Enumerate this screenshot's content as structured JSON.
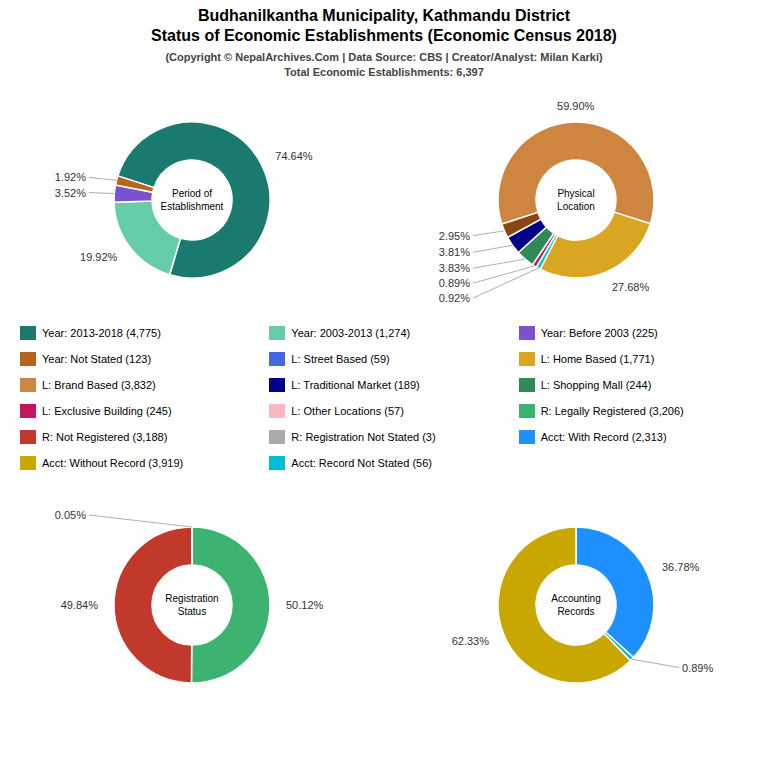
{
  "title": "Budhanilkantha Municipality, Kathmandu District\nStatus of Economic Establishments (Economic Census 2018)",
  "subtitle": "(Copyright © NepalArchives.Com | Data Source: CBS | Creator/Analyst: Milan Karki)\nTotal Economic Establishments: 6,397",
  "legend_entries": [
    [
      {
        "name": "Year: 2013-2018 (4,775)",
        "color": "#1a7a6e"
      },
      {
        "name": "Year: Not Stated (123)",
        "color": "#b5651d"
      },
      {
        "name": "L: Brand Based (3,832)",
        "color": "#cd853f"
      },
      {
        "name": "L: Exclusive Building (245)",
        "color": "#c2185b"
      },
      {
        "name": "R: Not Registered (3,188)",
        "color": "#c0392b"
      },
      {
        "name": "Acct: Without Record (3,919)",
        "color": "#c8a800"
      }
    ],
    [
      {
        "name": "Year: 2003-2013 (1,274)",
        "color": "#66cdaa"
      },
      {
        "name": "L: Street Based (59)",
        "color": "#4169E1"
      },
      {
        "name": "L: Traditional Market (189)",
        "color": "#00008B"
      },
      {
        "name": "L: Other Locations (57)",
        "color": "#FFB6C1"
      },
      {
        "name": "R: Registration Not Stated (3)",
        "color": "#aaaaaa"
      },
      {
        "name": "Acct: Record Not Stated (56)",
        "color": "#00bcd4"
      }
    ],
    [
      {
        "name": "Year: Before 2003 (225)",
        "color": "#7B52D0"
      },
      {
        "name": "L: Home Based (1,771)",
        "color": "#DAA520"
      },
      {
        "name": "L: Shopping Mall (244)",
        "color": "#2e8b57"
      },
      {
        "name": "R: Legally Registered (3,206)",
        "color": "#3cb371"
      },
      {
        "name": "Acct: With Record (2,313)",
        "color": "#1e90ff"
      }
    ]
  ],
  "chart_data": [
    {
      "type": "pie",
      "title": "Period of\nEstablishment",
      "values": [
        74.64,
        19.92,
        3.52,
        1.92
      ],
      "value_labels": [
        "74.64%",
        "19.92%",
        "3.52%",
        "1.92%"
      ],
      "colors": [
        "#1a7a6e",
        "#66cdaa",
        "#7B52D0",
        "#b5651d"
      ],
      "data_labels": true
    },
    {
      "type": "pie",
      "title": "Physical\nLocation",
      "values": [
        59.9,
        27.68,
        0.92,
        0.89,
        3.83,
        3.81,
        2.95
      ],
      "value_labels": [
        "59.90%",
        "27.68%",
        "0.92%",
        "0.89%",
        "3.83%",
        "3.81%",
        "2.95%"
      ],
      "colors": [
        "#cd853f",
        "#DAA520",
        "#00ced1",
        "#c2185b",
        "#2e8b57",
        "#00008B",
        "#8B4513"
      ],
      "data_labels": true
    },
    {
      "type": "pie",
      "title": "Registration\nStatus",
      "values": [
        50.12,
        49.84,
        0.05
      ],
      "value_labels": [
        "50.12%",
        "49.84%",
        "0.05%"
      ],
      "colors": [
        "#3cb371",
        "#c0392b",
        "#aaaaaa"
      ],
      "data_labels": true
    },
    {
      "type": "pie",
      "title": "Accounting\nRecords",
      "values": [
        36.78,
        0.89,
        62.33
      ],
      "value_labels": [
        "36.78%",
        "0.89%",
        "62.33%"
      ],
      "colors": [
        "#1e90ff",
        "#00bcd4",
        "#c8a800"
      ],
      "data_labels": true
    }
  ]
}
